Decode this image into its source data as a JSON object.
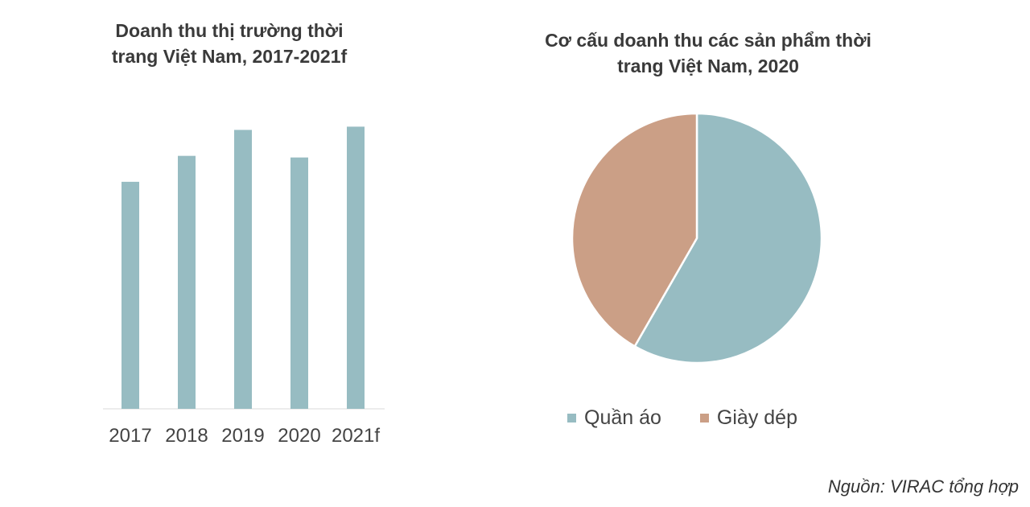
{
  "charts": {
    "bar": {
      "title_line1": "Doanh thu thị trường thời",
      "title_line2": "trang Việt Nam, 2017-2021f"
    },
    "pie": {
      "title_line1": "Cơ cấu doanh thu các sản phẩm thời",
      "title_line2": "trang Việt Nam, 2020"
    }
  },
  "source": "Nguồn: VIRAC tổng hợp",
  "colors": {
    "bar": "#97bcc2",
    "quan_ao": "#97bcc2",
    "giay_dep": "#cb9f86"
  },
  "chart_data": [
    {
      "type": "bar",
      "title": "Doanh thu thị trường thời trang Việt Nam, 2017-2021f",
      "categories": [
        "2017",
        "2018",
        "2019",
        "2020",
        "2021f"
      ],
      "values": [
        70,
        78,
        86,
        77.5,
        87
      ],
      "ylim": [
        0,
        100
      ],
      "grid": false,
      "legend": "none"
    },
    {
      "type": "pie",
      "title": "Cơ cấu doanh thu các sản phẩm thời trang Việt Nam, 2020",
      "labels": [
        "Quần áo",
        "Giày dép"
      ],
      "values": [
        58.3,
        41.7
      ],
      "legend": "bottom"
    }
  ]
}
